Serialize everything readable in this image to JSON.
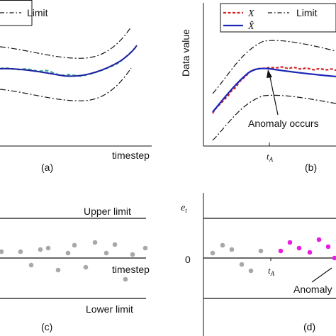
{
  "panels": {
    "a": {
      "caption": "(a)",
      "legend_limit": "Limit",
      "xlabel": "timestep"
    },
    "b": {
      "caption": "(b)",
      "ylabel": "Data value",
      "legend_x": "X",
      "legend_xhat": "X̂",
      "legend_limit": "Limit",
      "annotation": "Anomaly occurs",
      "tick_label": "t",
      "tick_sub": "A"
    },
    "c": {
      "caption": "(c)",
      "upper": "Upper limit",
      "lower": "Lower limit",
      "xlabel": "timestep"
    },
    "d": {
      "caption": "(d)",
      "ylabel": "e",
      "ylabel_sub": "t",
      "zero": "0",
      "tick_label": "t",
      "tick_sub": "A",
      "annotation": "Anomaly"
    }
  },
  "colors": {
    "line": "#1f1f9f",
    "actual": "#d42020",
    "predicted": "#1a27b8",
    "dashed_green": "#3aa6a0",
    "normal_dot": "#a8a8a8",
    "anomaly_dot": "#e51fe0",
    "axis": "#111111"
  }
}
